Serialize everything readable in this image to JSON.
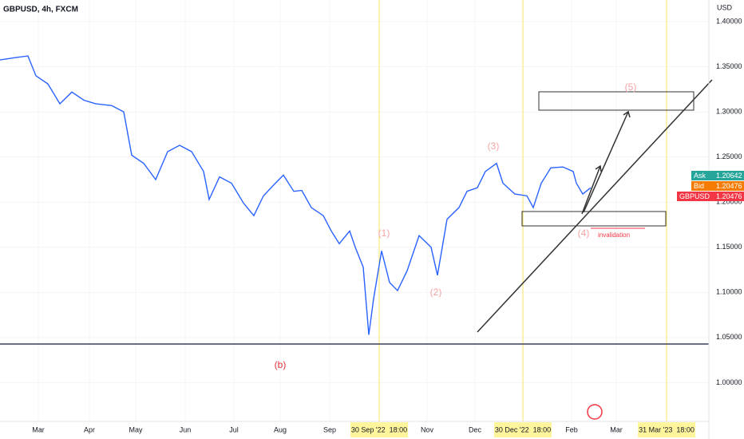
{
  "chart_data": {
    "type": "line",
    "title": "GBPUSD, 4h, FXCM",
    "currency": "USD",
    "x": [
      0,
      10,
      17.5,
      22.5,
      30,
      37.5,
      45,
      52.5,
      60,
      70,
      77.5,
      82.5,
      90,
      97.5,
      105,
      112.5,
      120,
      127.5,
      131,
      137.5,
      145,
      152.5,
      159,
      165,
      172.5,
      177.5,
      184,
      189,
      195,
      202.5,
      207.5,
      212.5,
      219,
      222.5,
      227.5,
      231,
      234,
      239,
      244,
      249,
      255,
      262.5,
      270,
      274,
      280,
      287.5,
      292.5,
      299,
      304,
      311,
      315,
      322.5,
      330,
      334,
      339,
      345,
      352.5,
      359,
      361,
      365,
      370
    ],
    "series": [
      {
        "name": "GBPUSD",
        "color": "#2962ff",
        "values": [
          1.3576,
          1.3603,
          1.362,
          1.34,
          1.331,
          1.309,
          1.322,
          1.313,
          1.309,
          1.307,
          1.3,
          1.252,
          1.243,
          1.225,
          1.256,
          1.263,
          1.256,
          1.234,
          1.203,
          1.228,
          1.221,
          1.199,
          1.185,
          1.207,
          1.221,
          1.23,
          1.212,
          1.213,
          1.194,
          1.185,
          1.168,
          1.154,
          1.168,
          1.15,
          1.128,
          1.053,
          1.093,
          1.146,
          1.111,
          1.102,
          1.124,
          1.163,
          1.15,
          1.119,
          1.181,
          1.194,
          1.212,
          1.216,
          1.234,
          1.243,
          1.221,
          1.209,
          1.207,
          1.194,
          1.221,
          1.238,
          1.239,
          1.234,
          1.221,
          1.209,
          1.216
        ]
      }
    ],
    "xlim": [
      0,
      444
    ],
    "xticks": [
      {
        "value": 24,
        "label": "Mar"
      },
      {
        "value": 56,
        "label": "Apr"
      },
      {
        "value": 85,
        "label": "May"
      },
      {
        "value": 116,
        "label": "Jun"
      },
      {
        "value": 146.5,
        "label": "Jul"
      },
      {
        "value": 175.5,
        "label": "Aug"
      },
      {
        "value": 206.5,
        "label": "Sep"
      },
      {
        "value": 267.5,
        "label": "Nov"
      },
      {
        "value": 297.5,
        "label": "Dec"
      },
      {
        "value": 358,
        "label": "Feb"
      },
      {
        "value": 386,
        "label": "Mar"
      }
    ],
    "x_markers": [
      {
        "value": 237.5,
        "label": "30 Sep '22  18:00"
      },
      {
        "value": 327.5,
        "label": "30 Dec '22  18:00"
      },
      {
        "value": 417.5,
        "label": "31 Mar '23  18:00"
      }
    ],
    "ylim": [
      0.957,
      1.424
    ],
    "yticks": [
      {
        "value": 1.0,
        "label": "1.00000"
      },
      {
        "value": 1.05,
        "label": "1.05000"
      },
      {
        "value": 1.1,
        "label": "1.10000"
      },
      {
        "value": 1.15,
        "label": "1.15000"
      },
      {
        "value": 1.2,
        "label": "1.20000"
      },
      {
        "value": 1.25,
        "label": "1.25000"
      },
      {
        "value": 1.3,
        "label": "1.30000"
      },
      {
        "value": 1.35,
        "label": "1.35000"
      },
      {
        "value": 1.4,
        "label": "1.40000"
      }
    ],
    "annotations": [
      "(5)",
      "(3)",
      "(1)",
      "(2)",
      "(4)",
      "(b)",
      "invalidation"
    ],
    "quotes": [
      {
        "label": "Ask",
        "price": "1.20642",
        "color": "#26a69a"
      },
      {
        "label": "Bid",
        "price": "1.20476",
        "color": "#f57c00"
      },
      {
        "label": "GBPUSD",
        "price": "1.20476",
        "color": "#f23645"
      }
    ]
  }
}
